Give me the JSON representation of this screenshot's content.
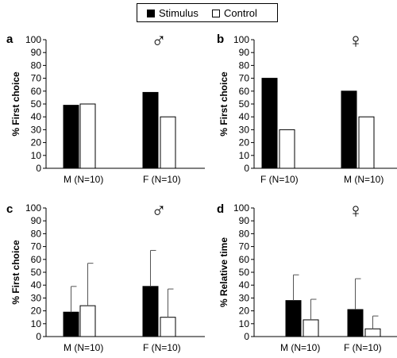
{
  "legend": {
    "items": [
      {
        "label": "Stimulus",
        "color": "#000000"
      },
      {
        "label": "Control",
        "color": "#ffffff"
      }
    ]
  },
  "chart_data": [
    {
      "type": "bar",
      "panel_label": "a",
      "sex_symbol": "♂",
      "ylabel": "% First choice",
      "ylim": [
        0,
        100
      ],
      "yticks": [
        0,
        10,
        20,
        30,
        40,
        50,
        60,
        70,
        80,
        90,
        100
      ],
      "categories": [
        "M (N=10)",
        "F (N=10)"
      ],
      "series": [
        {
          "name": "Stimulus",
          "color": "#000000",
          "values": [
            49,
            59
          ],
          "errors": [
            null,
            null
          ]
        },
        {
          "name": "Control",
          "color": "#ffffff",
          "values": [
            50,
            40
          ],
          "errors": [
            null,
            null
          ]
        }
      ]
    },
    {
      "type": "bar",
      "panel_label": "b",
      "sex_symbol": "♀",
      "ylabel": "% First choice",
      "ylim": [
        0,
        100
      ],
      "yticks": [
        0,
        10,
        20,
        30,
        40,
        50,
        60,
        70,
        80,
        90,
        100
      ],
      "categories": [
        "F (N=10)",
        "M (N=10)"
      ],
      "series": [
        {
          "name": "Stimulus",
          "color": "#000000",
          "values": [
            70,
            60
          ],
          "errors": [
            null,
            null
          ]
        },
        {
          "name": "Control",
          "color": "#ffffff",
          "values": [
            30,
            40
          ],
          "errors": [
            null,
            null
          ]
        }
      ]
    },
    {
      "type": "bar",
      "panel_label": "c",
      "sex_symbol": "♂",
      "ylabel": "% First choice",
      "ylim": [
        0,
        100
      ],
      "yticks": [
        0,
        10,
        20,
        30,
        40,
        50,
        60,
        70,
        80,
        90,
        100
      ],
      "categories": [
        "M (N=10)",
        "F (N=10)"
      ],
      "series": [
        {
          "name": "Stimulus",
          "color": "#000000",
          "values": [
            19,
            39
          ],
          "errors": [
            20,
            28
          ]
        },
        {
          "name": "Control",
          "color": "#ffffff",
          "values": [
            24,
            15
          ],
          "errors": [
            33,
            22
          ]
        }
      ]
    },
    {
      "type": "bar",
      "panel_label": "d",
      "sex_symbol": "♀",
      "ylabel": "% Relative time",
      "ylim": [
        0,
        100
      ],
      "yticks": [
        0,
        10,
        20,
        30,
        40,
        50,
        60,
        70,
        80,
        90,
        100
      ],
      "categories": [
        "M (N=10)",
        "F (N=10)"
      ],
      "series": [
        {
          "name": "Stimulus",
          "color": "#000000",
          "values": [
            28,
            21
          ],
          "errors": [
            20,
            24
          ]
        },
        {
          "name": "Control",
          "color": "#ffffff",
          "values": [
            13,
            6
          ],
          "errors": [
            16,
            10
          ]
        }
      ]
    }
  ]
}
